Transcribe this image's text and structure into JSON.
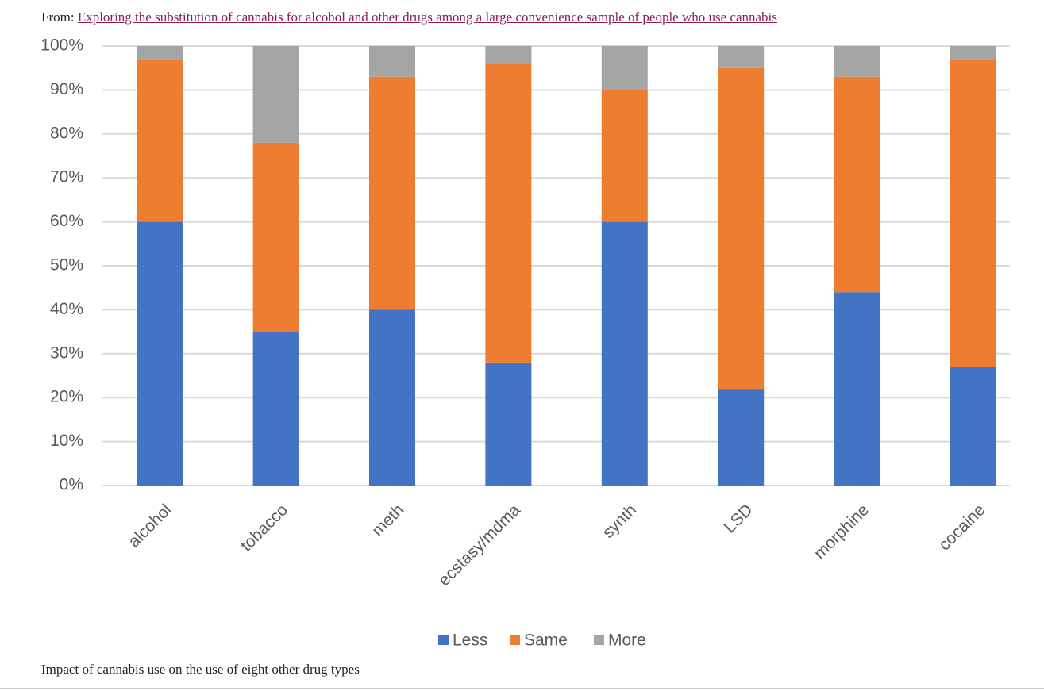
{
  "source_prefix": "From:",
  "source_link": "Exploring the substitution of cannabis for alcohol and other drugs among a large convenience sample of people who use cannabis",
  "caption": "Impact of cannabis use on the use of eight other drug types",
  "chart_data": {
    "type": "stacked_bar",
    "categories": [
      "alcohol",
      "tobacco",
      "meth",
      "ecstasy/mdma",
      "synth",
      "LSD",
      "morphine",
      "cocaine"
    ],
    "series": [
      {
        "name": "Less",
        "color": "#4472c4",
        "values": [
          60,
          35,
          40,
          28,
          60,
          22,
          44,
          27
        ]
      },
      {
        "name": "Same",
        "color": "#ed7d31",
        "values": [
          37,
          43,
          53,
          68,
          30,
          73,
          49,
          70
        ]
      },
      {
        "name": "More",
        "color": "#a5a5a5",
        "values": [
          3,
          22,
          7,
          4,
          10,
          5,
          7,
          3
        ]
      }
    ],
    "ylim": [
      0,
      100
    ],
    "yticks": [
      {
        "value": 0,
        "label": "0%"
      },
      {
        "value": 10,
        "label": "10%"
      },
      {
        "value": 20,
        "label": "20%"
      },
      {
        "value": 30,
        "label": "30%"
      },
      {
        "value": 40,
        "label": "40%"
      },
      {
        "value": 50,
        "label": "50%"
      },
      {
        "value": 60,
        "label": "60%"
      },
      {
        "value": 70,
        "label": "70%"
      },
      {
        "value": 80,
        "label": "80%"
      },
      {
        "value": 90,
        "label": "90%"
      },
      {
        "value": 100,
        "label": "100%"
      }
    ],
    "grid": true,
    "legend": "bottom"
  }
}
